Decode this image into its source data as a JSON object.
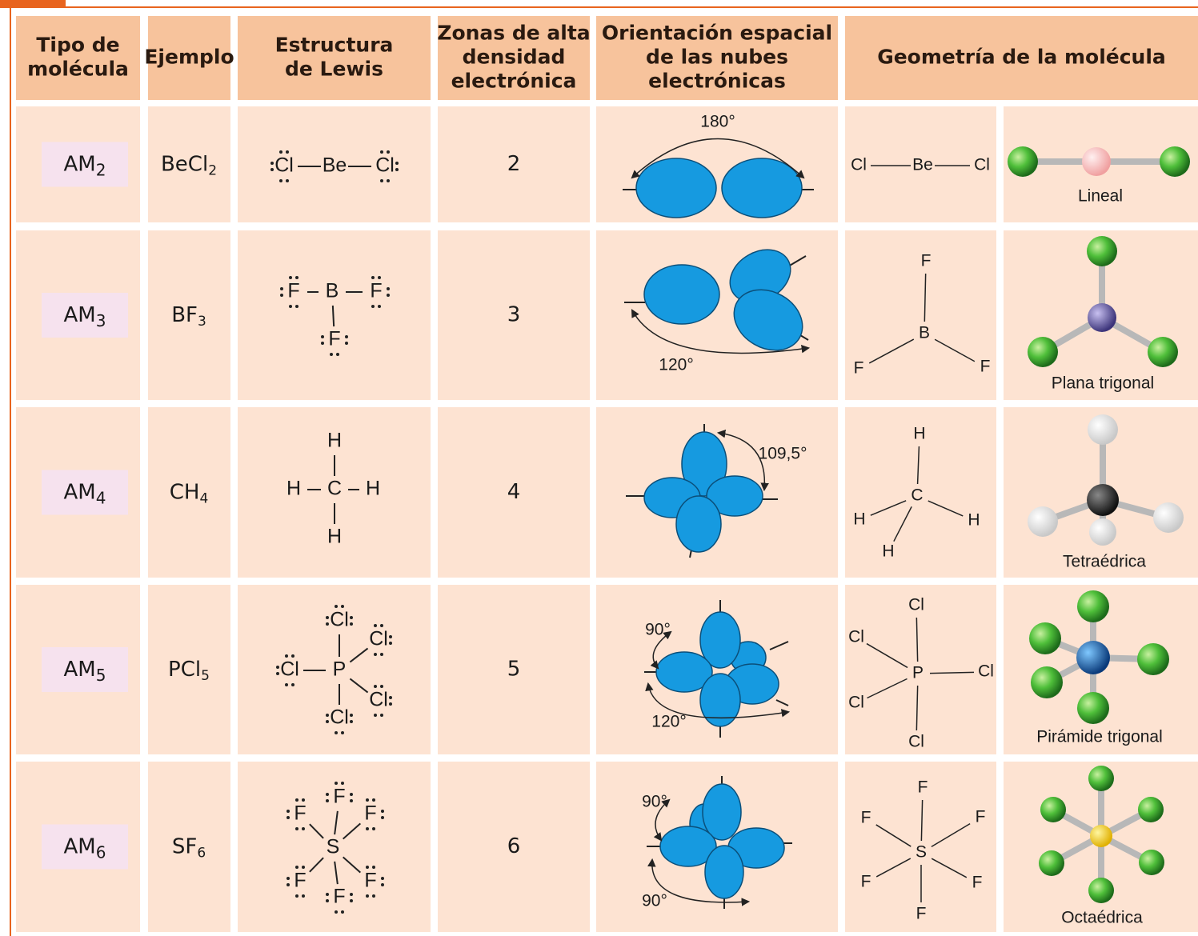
{
  "table": {
    "header": [
      [
        "Tipo de",
        "molécula"
      ],
      [
        "Ejemplo"
      ],
      [
        "Estructura",
        "de Lewis"
      ],
      [
        "Zonas de alta",
        "densidad",
        "electrónica"
      ],
      [
        "Orientación espacial",
        "de las nubes",
        "electrónicas"
      ],
      [
        "Geometría de la molécula"
      ]
    ],
    "rows": [
      {
        "type": {
          "text": "AM",
          "sub": "2"
        },
        "example": {
          "text": "BeCl",
          "sub": "2"
        },
        "lewis": [
          "Cl",
          "Be",
          "Cl"
        ],
        "zones": 2,
        "angles": [
          "180°"
        ],
        "formula": [
          "Cl",
          "Be",
          "Cl"
        ],
        "shape": "Lineal"
      },
      {
        "type": {
          "text": "AM",
          "sub": "3"
        },
        "example": {
          "text": "BF",
          "sub": "3"
        },
        "lewis": [
          "F",
          "B",
          "F",
          "F"
        ],
        "zones": 3,
        "angles": [
          "120°"
        ],
        "formula": [
          "F",
          "B",
          "F",
          "F"
        ],
        "shape": "Plana trigonal"
      },
      {
        "type": {
          "text": "AM",
          "sub": "4"
        },
        "example": {
          "text": "CH",
          "sub": "4"
        },
        "lewis": [
          "H",
          "C",
          "H",
          "H",
          "H"
        ],
        "zones": 4,
        "angles": [
          "109,5°"
        ],
        "formula": [
          "H",
          "C",
          "H",
          "H",
          "H"
        ],
        "shape": "Tetraédrica"
      },
      {
        "type": {
          "text": "AM",
          "sub": "5"
        },
        "example": {
          "text": "PCl",
          "sub": "5"
        },
        "lewis": [
          "Cl",
          "Cl",
          "Cl",
          "P",
          "Cl",
          "Cl"
        ],
        "zones": 5,
        "angles": [
          "90°",
          "120°"
        ],
        "formula": [
          "Cl",
          "Cl",
          "P",
          "Cl",
          "Cl",
          "Cl"
        ],
        "shape": "Pirámide trigonal"
      },
      {
        "type": {
          "text": "AM",
          "sub": "6"
        },
        "example": {
          "text": "SF",
          "sub": "6"
        },
        "lewis": [
          "S",
          "F",
          "F",
          "F",
          "F",
          "F",
          "F"
        ],
        "zones": 6,
        "angles": [
          "90°",
          "90°"
        ],
        "formula": [
          "S",
          "F",
          "F",
          "F",
          "F",
          "F",
          "F"
        ],
        "shape": "Octaédrica"
      }
    ]
  }
}
